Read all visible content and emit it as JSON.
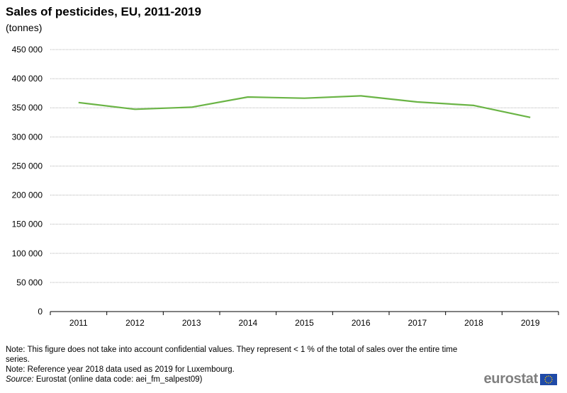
{
  "header": {
    "title": "Sales of pesticides, EU, 2011-2019",
    "subtitle": "(tonnes)"
  },
  "chart_data": {
    "type": "line",
    "title": "Sales of pesticides, EU, 2011-2019",
    "ylabel": "(tonnes)",
    "categories": [
      "2011",
      "2012",
      "2013",
      "2014",
      "2015",
      "2016",
      "2017",
      "2018",
      "2019"
    ],
    "series": [
      {
        "values": [
          359000,
          347500,
          351000,
          368500,
          366500,
          370500,
          360000,
          354000,
          333500
        ]
      }
    ],
    "ylim": [
      0,
      450000
    ],
    "yticks": [
      0,
      50000,
      100000,
      150000,
      200000,
      250000,
      300000,
      350000,
      400000,
      450000
    ],
    "ytick_labels": [
      "0",
      "50 000",
      "100 000",
      "150 000",
      "200 000",
      "250 000",
      "300 000",
      "350 000",
      "400 000",
      "450 000"
    ],
    "grid": true,
    "legend": "none",
    "line_color": "#6ab445"
  },
  "notes": {
    "note1": "Note: This figure does not take into account confidential values. They represent < 1 % of the total of sales over the entire time series.",
    "note2": "Note: Reference year 2018 data used as 2019 for Luxembourg.",
    "source_label": "Source:",
    "source_text": " Eurostat (online data code: aei_fm_salpest09)"
  },
  "logo": {
    "text": "eurostat",
    "flag_icon": "eu-flag-icon"
  }
}
